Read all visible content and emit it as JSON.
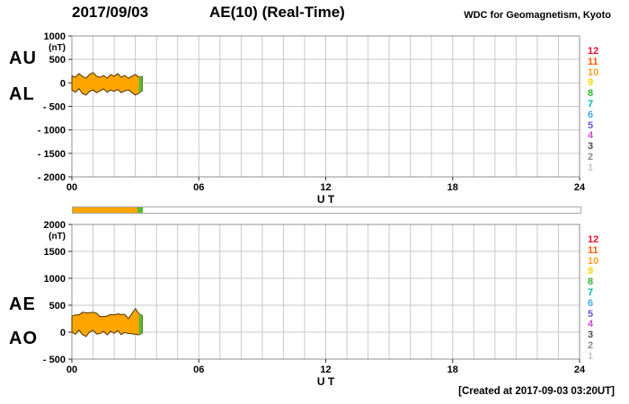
{
  "header": {
    "date": "2017/09/03",
    "title": "AE(10) (Real-Time)",
    "source": "WDC for Geomagnetism, Kyoto"
  },
  "panels": {
    "top": {
      "label_upper": "AU",
      "label_lower": "AL"
    },
    "bottom": {
      "label_upper": "AE",
      "label_lower": "AO"
    }
  },
  "station_scale": [
    {
      "n": "12",
      "color": "#e8112d"
    },
    {
      "n": "11",
      "color": "#ff5a00"
    },
    {
      "n": "10",
      "color": "#ffa028"
    },
    {
      "n": "9",
      "color": "#ffd400"
    },
    {
      "n": "8",
      "color": "#2eb82e"
    },
    {
      "n": "7",
      "color": "#00b7a6"
    },
    {
      "n": "6",
      "color": "#3fa9f5"
    },
    {
      "n": "5",
      "color": "#6655d3"
    },
    {
      "n": "4",
      "color": "#c94fc9"
    },
    {
      "n": "3",
      "color": "#4d4d4d"
    },
    {
      "n": "2",
      "color": "#8c8c8c"
    },
    {
      "n": "1",
      "color": "#c4c4c4"
    }
  ],
  "colors": {
    "band_fill": "#FFA500",
    "band_edge": "#4d3300",
    "latest": "#55bb33",
    "grid": "#c9c9c9",
    "border": "#909090"
  },
  "availability_bar": {
    "range": [
      0,
      24
    ],
    "segments": [
      {
        "from": 0,
        "to": 3.05,
        "color": "#FFA500"
      },
      {
        "from": 3.05,
        "to": 3.33,
        "color": "#55bb33"
      }
    ]
  },
  "footer": {
    "created": "[Created at 2017-09-03 03:20UT]"
  },
  "chart_data": [
    {
      "type": "area",
      "title": "AE(10) (Real-Time)",
      "panel": "AU / AL",
      "ylabel": "(nT)",
      "xlabel": "U T",
      "ylim": [
        -2000,
        1000
      ],
      "yticks": [
        1000,
        500,
        0,
        -500,
        -1000,
        -1500,
        -2000
      ],
      "ytick_labels": [
        "1000",
        "500",
        "0",
        "- 500",
        "- 1000",
        "- 1500",
        "- 2000"
      ],
      "xlim": [
        0,
        24
      ],
      "xticks": [
        0,
        6,
        12,
        18,
        24
      ],
      "xtick_labels": [
        "00",
        "06",
        "12",
        "18",
        "24"
      ],
      "grid_hours": 1,
      "data_end_ut": 3.33,
      "x": [
        0,
        0.17,
        0.33,
        0.5,
        0.67,
        0.83,
        1,
        1.17,
        1.33,
        1.5,
        1.67,
        1.83,
        2,
        2.17,
        2.33,
        2.5,
        2.67,
        2.83,
        3,
        3.17,
        3.33
      ],
      "series": [
        {
          "name": "AU",
          "values": [
            150,
            120,
            200,
            140,
            100,
            180,
            220,
            140,
            120,
            160,
            100,
            180,
            140,
            200,
            120,
            160,
            100,
            140,
            180,
            120,
            140
          ]
        },
        {
          "name": "AL",
          "values": [
            -150,
            -200,
            -120,
            -230,
            -260,
            -180,
            -150,
            -210,
            -170,
            -130,
            -200,
            -150,
            -180,
            -140,
            -210,
            -170,
            -150,
            -200,
            -260,
            -220,
            -170
          ]
        }
      ]
    },
    {
      "type": "area",
      "title": "AE(10) (Real-Time)",
      "panel": "AE / AO",
      "ylabel": "(nT)",
      "xlabel": "U T",
      "ylim": [
        -500,
        2000
      ],
      "yticks": [
        2000,
        1500,
        1000,
        500,
        0,
        -500
      ],
      "ytick_labels": [
        "2000",
        "1500",
        "1000",
        "500",
        "0",
        "- 500"
      ],
      "xlim": [
        0,
        24
      ],
      "xticks": [
        0,
        6,
        12,
        18,
        24
      ],
      "xtick_labels": [
        "00",
        "06",
        "12",
        "18",
        "24"
      ],
      "grid_hours": 1,
      "data_end_ut": 3.33,
      "x": [
        0,
        0.17,
        0.33,
        0.5,
        0.67,
        0.83,
        1,
        1.17,
        1.33,
        1.5,
        1.67,
        1.83,
        2,
        2.17,
        2.33,
        2.5,
        2.67,
        2.83,
        3,
        3.17,
        3.33
      ],
      "series": [
        {
          "name": "AE",
          "values": [
            300,
            320,
            320,
            370,
            360,
            360,
            370,
            350,
            290,
            290,
            300,
            330,
            320,
            340,
            330,
            330,
            250,
            340,
            440,
            340,
            310
          ]
        },
        {
          "name": "AO",
          "values": [
            0,
            -40,
            40,
            -45,
            -80,
            0,
            35,
            -35,
            -25,
            15,
            -50,
            15,
            -20,
            30,
            -45,
            -5,
            -25,
            -30,
            -40,
            -50,
            -15
          ]
        }
      ]
    }
  ]
}
